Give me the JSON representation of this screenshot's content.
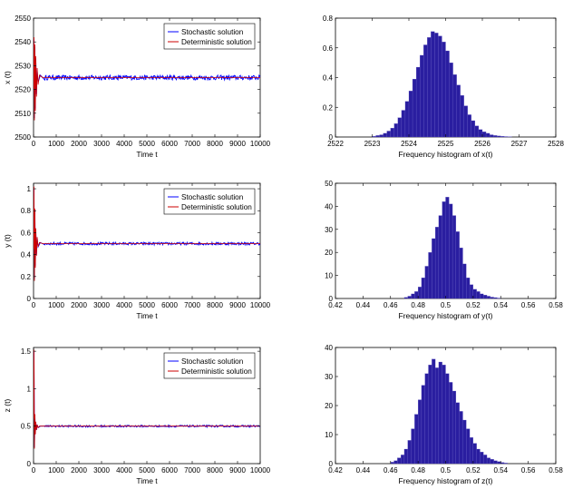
{
  "chart_data": [
    {
      "type": "line",
      "xlabel": "Time t",
      "ylabel": "x (t)",
      "xlim": [
        0,
        10000
      ],
      "ylim": [
        2500,
        2550
      ],
      "xticks": [
        0,
        1000,
        2000,
        3000,
        4000,
        5000,
        6000,
        7000,
        8000,
        9000,
        10000
      ],
      "yticks": [
        2500,
        2510,
        2520,
        2530,
        2540,
        2550
      ],
      "legend_position": "top-right",
      "series": [
        {
          "name": "Stochastic solution",
          "color": "#0000ff",
          "x": [
            0,
            20,
            40,
            60,
            80,
            100,
            130,
            160,
            200,
            300,
            500,
            1000,
            2000,
            3000,
            4000,
            5000,
            6000,
            7000,
            8000,
            9000,
            10000
          ],
          "y": [
            2520,
            2541,
            2508,
            2538,
            2512,
            2533,
            2518,
            2528,
            2523,
            2526,
            2524,
            2525,
            2524,
            2525,
            2524,
            2525,
            2524,
            2525,
            2524,
            2525,
            2525
          ],
          "noise": 1.0
        },
        {
          "name": "Deterministic solution",
          "color": "#cc0000",
          "x": [
            0,
            20,
            40,
            60,
            80,
            100,
            130,
            160,
            200,
            260,
            400,
            10000
          ],
          "y": [
            2520,
            2542,
            2507,
            2539,
            2511,
            2534,
            2517,
            2529,
            2522,
            2526,
            2525,
            2525
          ]
        }
      ]
    },
    {
      "type": "bar",
      "xlabel": "Frequency histogram of x(t)",
      "xlim": [
        2522,
        2528
      ],
      "ylim": [
        0,
        0.8
      ],
      "xticks": [
        2522,
        2523,
        2524,
        2525,
        2526,
        2527,
        2528
      ],
      "yticks": [
        0,
        0.2,
        0.4,
        0.6,
        0.8
      ],
      "bin_width": 0.1,
      "x": [
        2523.0,
        2523.1,
        2523.2,
        2523.3,
        2523.4,
        2523.5,
        2523.6,
        2523.7,
        2523.8,
        2523.9,
        2524.0,
        2524.1,
        2524.2,
        2524.3,
        2524.4,
        2524.5,
        2524.6,
        2524.7,
        2524.8,
        2524.9,
        2525.0,
        2525.1,
        2525.2,
        2525.3,
        2525.4,
        2525.5,
        2525.6,
        2525.7,
        2525.8,
        2525.9,
        2526.0,
        2526.1,
        2526.2,
        2526.3,
        2526.4,
        2526.5,
        2526.6,
        2526.7
      ],
      "values": [
        0.005,
        0.01,
        0.015,
        0.025,
        0.04,
        0.06,
        0.09,
        0.13,
        0.18,
        0.24,
        0.31,
        0.39,
        0.47,
        0.55,
        0.62,
        0.67,
        0.71,
        0.7,
        0.68,
        0.64,
        0.58,
        0.5,
        0.42,
        0.35,
        0.28,
        0.21,
        0.15,
        0.11,
        0.075,
        0.05,
        0.035,
        0.025,
        0.015,
        0.01,
        0.007,
        0.005,
        0.003,
        0.002
      ]
    },
    {
      "type": "line",
      "xlabel": "Time t",
      "ylabel": "y (t)",
      "xlim": [
        0,
        10000
      ],
      "ylim": [
        0,
        1.05
      ],
      "xticks": [
        0,
        1000,
        2000,
        3000,
        4000,
        5000,
        6000,
        7000,
        8000,
        9000,
        10000
      ],
      "yticks": [
        0,
        0.2,
        0.4,
        0.6,
        0.8,
        1
      ],
      "legend_position": "top-right",
      "series": [
        {
          "name": "Stochastic solution",
          "color": "#0000ff",
          "x": [
            0,
            20,
            40,
            60,
            80,
            100,
            130,
            160,
            200,
            300,
            500,
            1000,
            2000,
            3000,
            4000,
            5000,
            6000,
            7000,
            8000,
            9000,
            10000
          ],
          "y": [
            0.45,
            1.0,
            0.18,
            0.8,
            0.3,
            0.62,
            0.4,
            0.55,
            0.47,
            0.51,
            0.49,
            0.5,
            0.49,
            0.5,
            0.5,
            0.49,
            0.5,
            0.5,
            0.49,
            0.5,
            0.5
          ],
          "noise": 0.012
        },
        {
          "name": "Deterministic solution",
          "color": "#cc0000",
          "x": [
            0,
            20,
            40,
            60,
            80,
            100,
            130,
            160,
            200,
            260,
            400,
            10000
          ],
          "y": [
            0.45,
            1.02,
            0.16,
            0.82,
            0.28,
            0.64,
            0.39,
            0.56,
            0.47,
            0.51,
            0.5,
            0.5
          ]
        }
      ]
    },
    {
      "type": "bar",
      "xlabel": "Frequency histogram of y(t)",
      "xlim": [
        0.42,
        0.58
      ],
      "ylim": [
        0,
        50
      ],
      "xticks": [
        0.42,
        0.44,
        0.46,
        0.48,
        0.5,
        0.52,
        0.54,
        0.56,
        0.58
      ],
      "yticks": [
        0,
        10,
        20,
        30,
        40,
        50
      ],
      "bin_width": 0.0025,
      "x": [
        0.47,
        0.4725,
        0.475,
        0.4775,
        0.48,
        0.4825,
        0.485,
        0.4875,
        0.49,
        0.4925,
        0.495,
        0.4975,
        0.5,
        0.5025,
        0.505,
        0.5075,
        0.51,
        0.5125,
        0.515,
        0.5175,
        0.52,
        0.5225,
        0.525,
        0.5275,
        0.53,
        0.5325,
        0.535,
        0.5375
      ],
      "values": [
        0.5,
        1,
        2,
        3,
        5,
        9,
        14,
        20,
        26,
        31,
        36,
        42,
        44,
        41,
        36,
        29,
        22,
        15,
        9,
        6,
        4,
        3,
        2,
        1.5,
        1,
        0.6,
        0.4,
        0.2
      ]
    },
    {
      "type": "line",
      "xlabel": "Time t",
      "ylabel": "z (t)",
      "xlim": [
        0,
        10000
      ],
      "ylim": [
        0,
        1.55
      ],
      "xticks": [
        0,
        1000,
        2000,
        3000,
        4000,
        5000,
        6000,
        7000,
        8000,
        9000,
        10000
      ],
      "yticks": [
        0,
        0.5,
        1,
        1.5
      ],
      "legend_position": "top-right",
      "series": [
        {
          "name": "Stochastic solution",
          "color": "#0000ff",
          "x": [
            0,
            20,
            40,
            60,
            80,
            100,
            130,
            160,
            200,
            300,
            500,
            1000,
            2000,
            3000,
            4000,
            5000,
            6000,
            7000,
            8000,
            9000,
            10000
          ],
          "y": [
            0.6,
            1.5,
            0.22,
            0.65,
            0.4,
            0.55,
            0.45,
            0.52,
            0.48,
            0.5,
            0.5,
            0.5,
            0.49,
            0.5,
            0.5,
            0.49,
            0.5,
            0.5,
            0.49,
            0.5,
            0.5
          ],
          "noise": 0.013
        },
        {
          "name": "Deterministic solution",
          "color": "#cc0000",
          "x": [
            0,
            20,
            40,
            60,
            80,
            100,
            130,
            160,
            200,
            260,
            400,
            10000
          ],
          "y": [
            0.6,
            1.52,
            0.2,
            0.66,
            0.39,
            0.56,
            0.45,
            0.52,
            0.48,
            0.5,
            0.5,
            0.5
          ]
        }
      ]
    },
    {
      "type": "bar",
      "xlabel": "Frequency histogram of z(t)",
      "xlim": [
        0.42,
        0.58
      ],
      "ylim": [
        0,
        40
      ],
      "xticks": [
        0.42,
        0.44,
        0.46,
        0.48,
        0.5,
        0.52,
        0.54,
        0.56,
        0.58
      ],
      "yticks": [
        0,
        10,
        20,
        30,
        40
      ],
      "bin_width": 0.0025,
      "x": [
        0.46,
        0.4625,
        0.465,
        0.4675,
        0.47,
        0.4725,
        0.475,
        0.4775,
        0.48,
        0.4825,
        0.485,
        0.4875,
        0.49,
        0.4925,
        0.495,
        0.4975,
        0.5,
        0.5025,
        0.505,
        0.5075,
        0.51,
        0.5125,
        0.515,
        0.5175,
        0.52,
        0.5225,
        0.525,
        0.5275,
        0.53,
        0.5325,
        0.535,
        0.5375,
        0.54,
        0.5425
      ],
      "values": [
        0.5,
        1,
        2,
        3,
        5,
        8,
        12,
        17,
        22,
        27,
        31,
        34,
        36,
        33,
        35,
        34,
        31,
        28,
        25,
        21,
        18,
        15,
        12,
        9,
        7,
        5,
        4,
        3,
        2,
        1.5,
        1,
        0.7,
        0.4,
        0.2
      ]
    }
  ]
}
